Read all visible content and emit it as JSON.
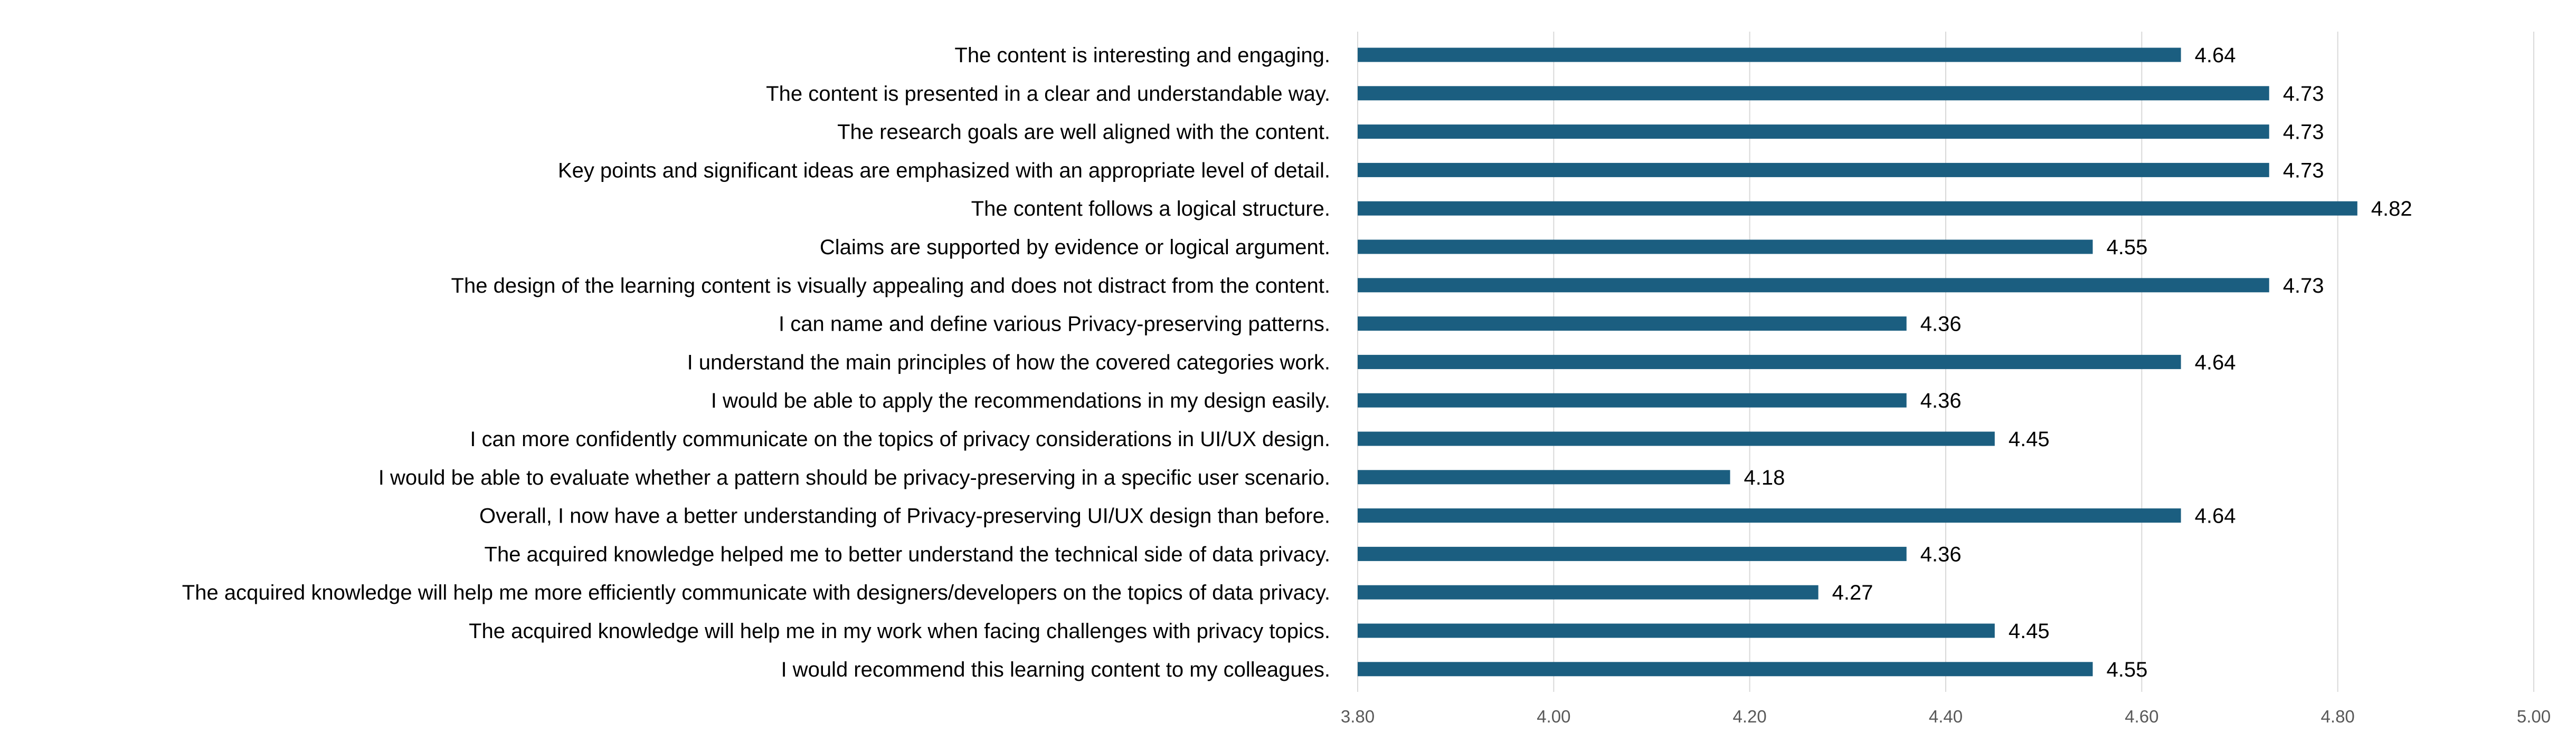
{
  "chart_data": {
    "type": "bar",
    "orientation": "horizontal",
    "categories": [
      "The content is interesting and engaging.",
      "The content is presented in a clear and understandable way.",
      "The research goals are well aligned with the content.",
      "Key points and significant ideas are emphasized with an appropriate level of detail.",
      "The content follows a logical structure.",
      "Claims are supported by evidence or logical argument.",
      "The design of the learning content is visually appealing and does not distract from the content.",
      "I can name and define various Privacy-preserving patterns.",
      "I understand the main principles of how the covered categories work.",
      "I would be able to apply the recommendations in my design easily.",
      "I can more confidently communicate on the topics of privacy considerations in UI/UX design.",
      "I would be able to evaluate whether a pattern should be privacy-preserving in a specific user scenario.",
      "Overall, I now have a better understanding of Privacy-preserving UI/UX design than before.",
      "The acquired knowledge helped me to better understand the technical side of data privacy.",
      "The acquired knowledge will help me more efficiently communicate with designers/developers on the topics of data privacy.",
      "The acquired knowledge will help me in my work when facing challenges with privacy topics.",
      "I would recommend this learning content to my colleagues."
    ],
    "values": [
      4.64,
      4.73,
      4.73,
      4.73,
      4.82,
      4.55,
      4.73,
      4.36,
      4.64,
      4.36,
      4.45,
      4.18,
      4.64,
      4.36,
      4.27,
      4.45,
      4.55
    ],
    "value_labels": [
      "4.64",
      "4.73",
      "4.73",
      "4.73",
      "4.82",
      "4.55",
      "4.73",
      "4.36",
      "4.64",
      "4.36",
      "4.45",
      "4.18",
      "4.64",
      "4.36",
      "4.27",
      "4.45",
      "4.55"
    ],
    "xlim": [
      3.8,
      5.0
    ],
    "xticks": [
      3.8,
      4.0,
      4.2,
      4.4,
      4.6,
      4.8,
      5.0
    ],
    "xtick_labels": [
      "3.80",
      "4.00",
      "4.20",
      "4.40",
      "4.60",
      "4.80",
      "5.00"
    ],
    "title": "",
    "xlabel": "",
    "ylabel": "",
    "grid": true,
    "legend": "none",
    "bar_color": "#1b5e80",
    "grid_color": "#d9d9d9"
  }
}
